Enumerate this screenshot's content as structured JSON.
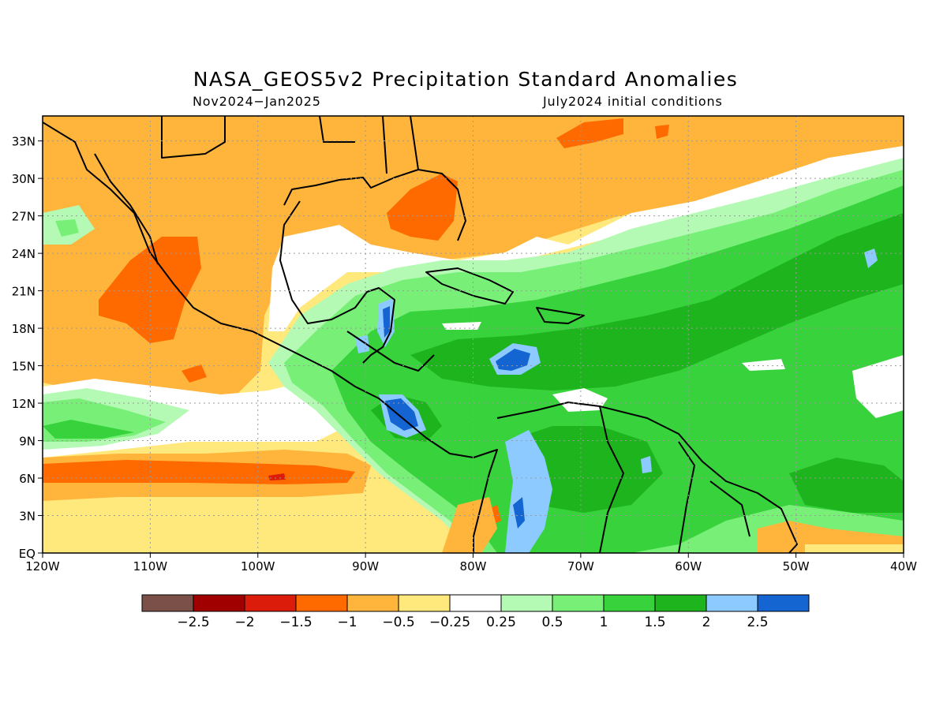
{
  "title": "NASA_GEOS5v2 Precipitation Standard Anomalies",
  "subtitle_left": "Nov2024−Jan2025",
  "subtitle_right": "July2024 initial conditions",
  "map": {
    "lon_range": [
      -120,
      -40
    ],
    "lat_range": [
      0,
      35
    ],
    "x_ticks": [
      "120W",
      "110W",
      "100W",
      "90W",
      "80W",
      "70W",
      "60W",
      "50W",
      "40W"
    ],
    "y_ticks": [
      "EQ",
      "3N",
      "6N",
      "9N",
      "12N",
      "15N",
      "18N",
      "21N",
      "24N",
      "27N",
      "30N",
      "33N"
    ],
    "grid": "dotted"
  },
  "colorbar": {
    "labels": [
      "−2.5",
      "−2",
      "−1.5",
      "−1",
      "−0.5",
      "−0.25",
      "0.25",
      "0.5",
      "1",
      "1.5",
      "2",
      "2.5"
    ],
    "colors": [
      "#7a5048",
      "#a00000",
      "#dc1c0a",
      "#ff6a00",
      "#ffb43c",
      "#ffe87c",
      "#ffffff",
      "#b4fab4",
      "#78f078",
      "#37d23c",
      "#1eb41e",
      "#8ccaff",
      "#1464d2"
    ]
  }
}
